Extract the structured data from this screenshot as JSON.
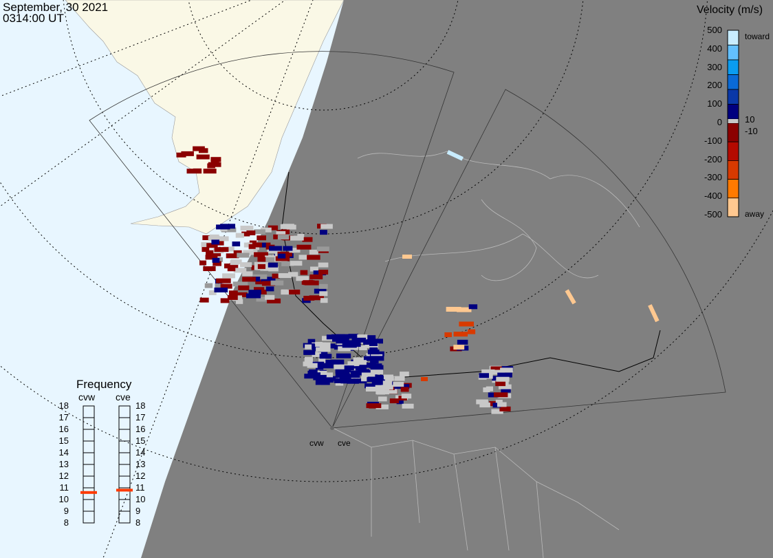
{
  "header": {
    "date": "September, 30 2021",
    "time": "0314:00 UT"
  },
  "colors": {
    "ocean": "#e8f6ff",
    "land": "#faf8e6",
    "night": "#808080",
    "scatter_low": "#c8c8c8",
    "frequency_marker": "#ff3a00"
  },
  "velocity_scale": {
    "title": "Velocity (m/s)",
    "ticks": [
      "500",
      "400",
      "300",
      "200",
      "100",
      "0",
      "-100",
      "-200",
      "-300",
      "-400",
      "-500"
    ],
    "toward_label": "toward",
    "away_label": "away",
    "pos_threshold": "10",
    "neg_threshold": "-10",
    "colors": [
      "#c8ecff",
      "#63c0ff",
      "#0a9cf0",
      "#0a6ad6",
      "#0a38a8",
      "#00007f",
      "#8b0000",
      "#b40a00",
      "#d83a00",
      "#ff7a00",
      "#ffc890"
    ]
  },
  "frequency": {
    "title": "Frequency",
    "radars": [
      {
        "name": "cvw",
        "value_mhz": 10.6
      },
      {
        "name": "cve",
        "value_mhz": 10.8
      }
    ],
    "ticks": [
      "18",
      "17",
      "16",
      "15",
      "14",
      "13",
      "12",
      "11",
      "10",
      "9",
      "8"
    ]
  },
  "radar_sites": [
    {
      "name": "cvw"
    },
    {
      "name": "cve"
    }
  ]
}
